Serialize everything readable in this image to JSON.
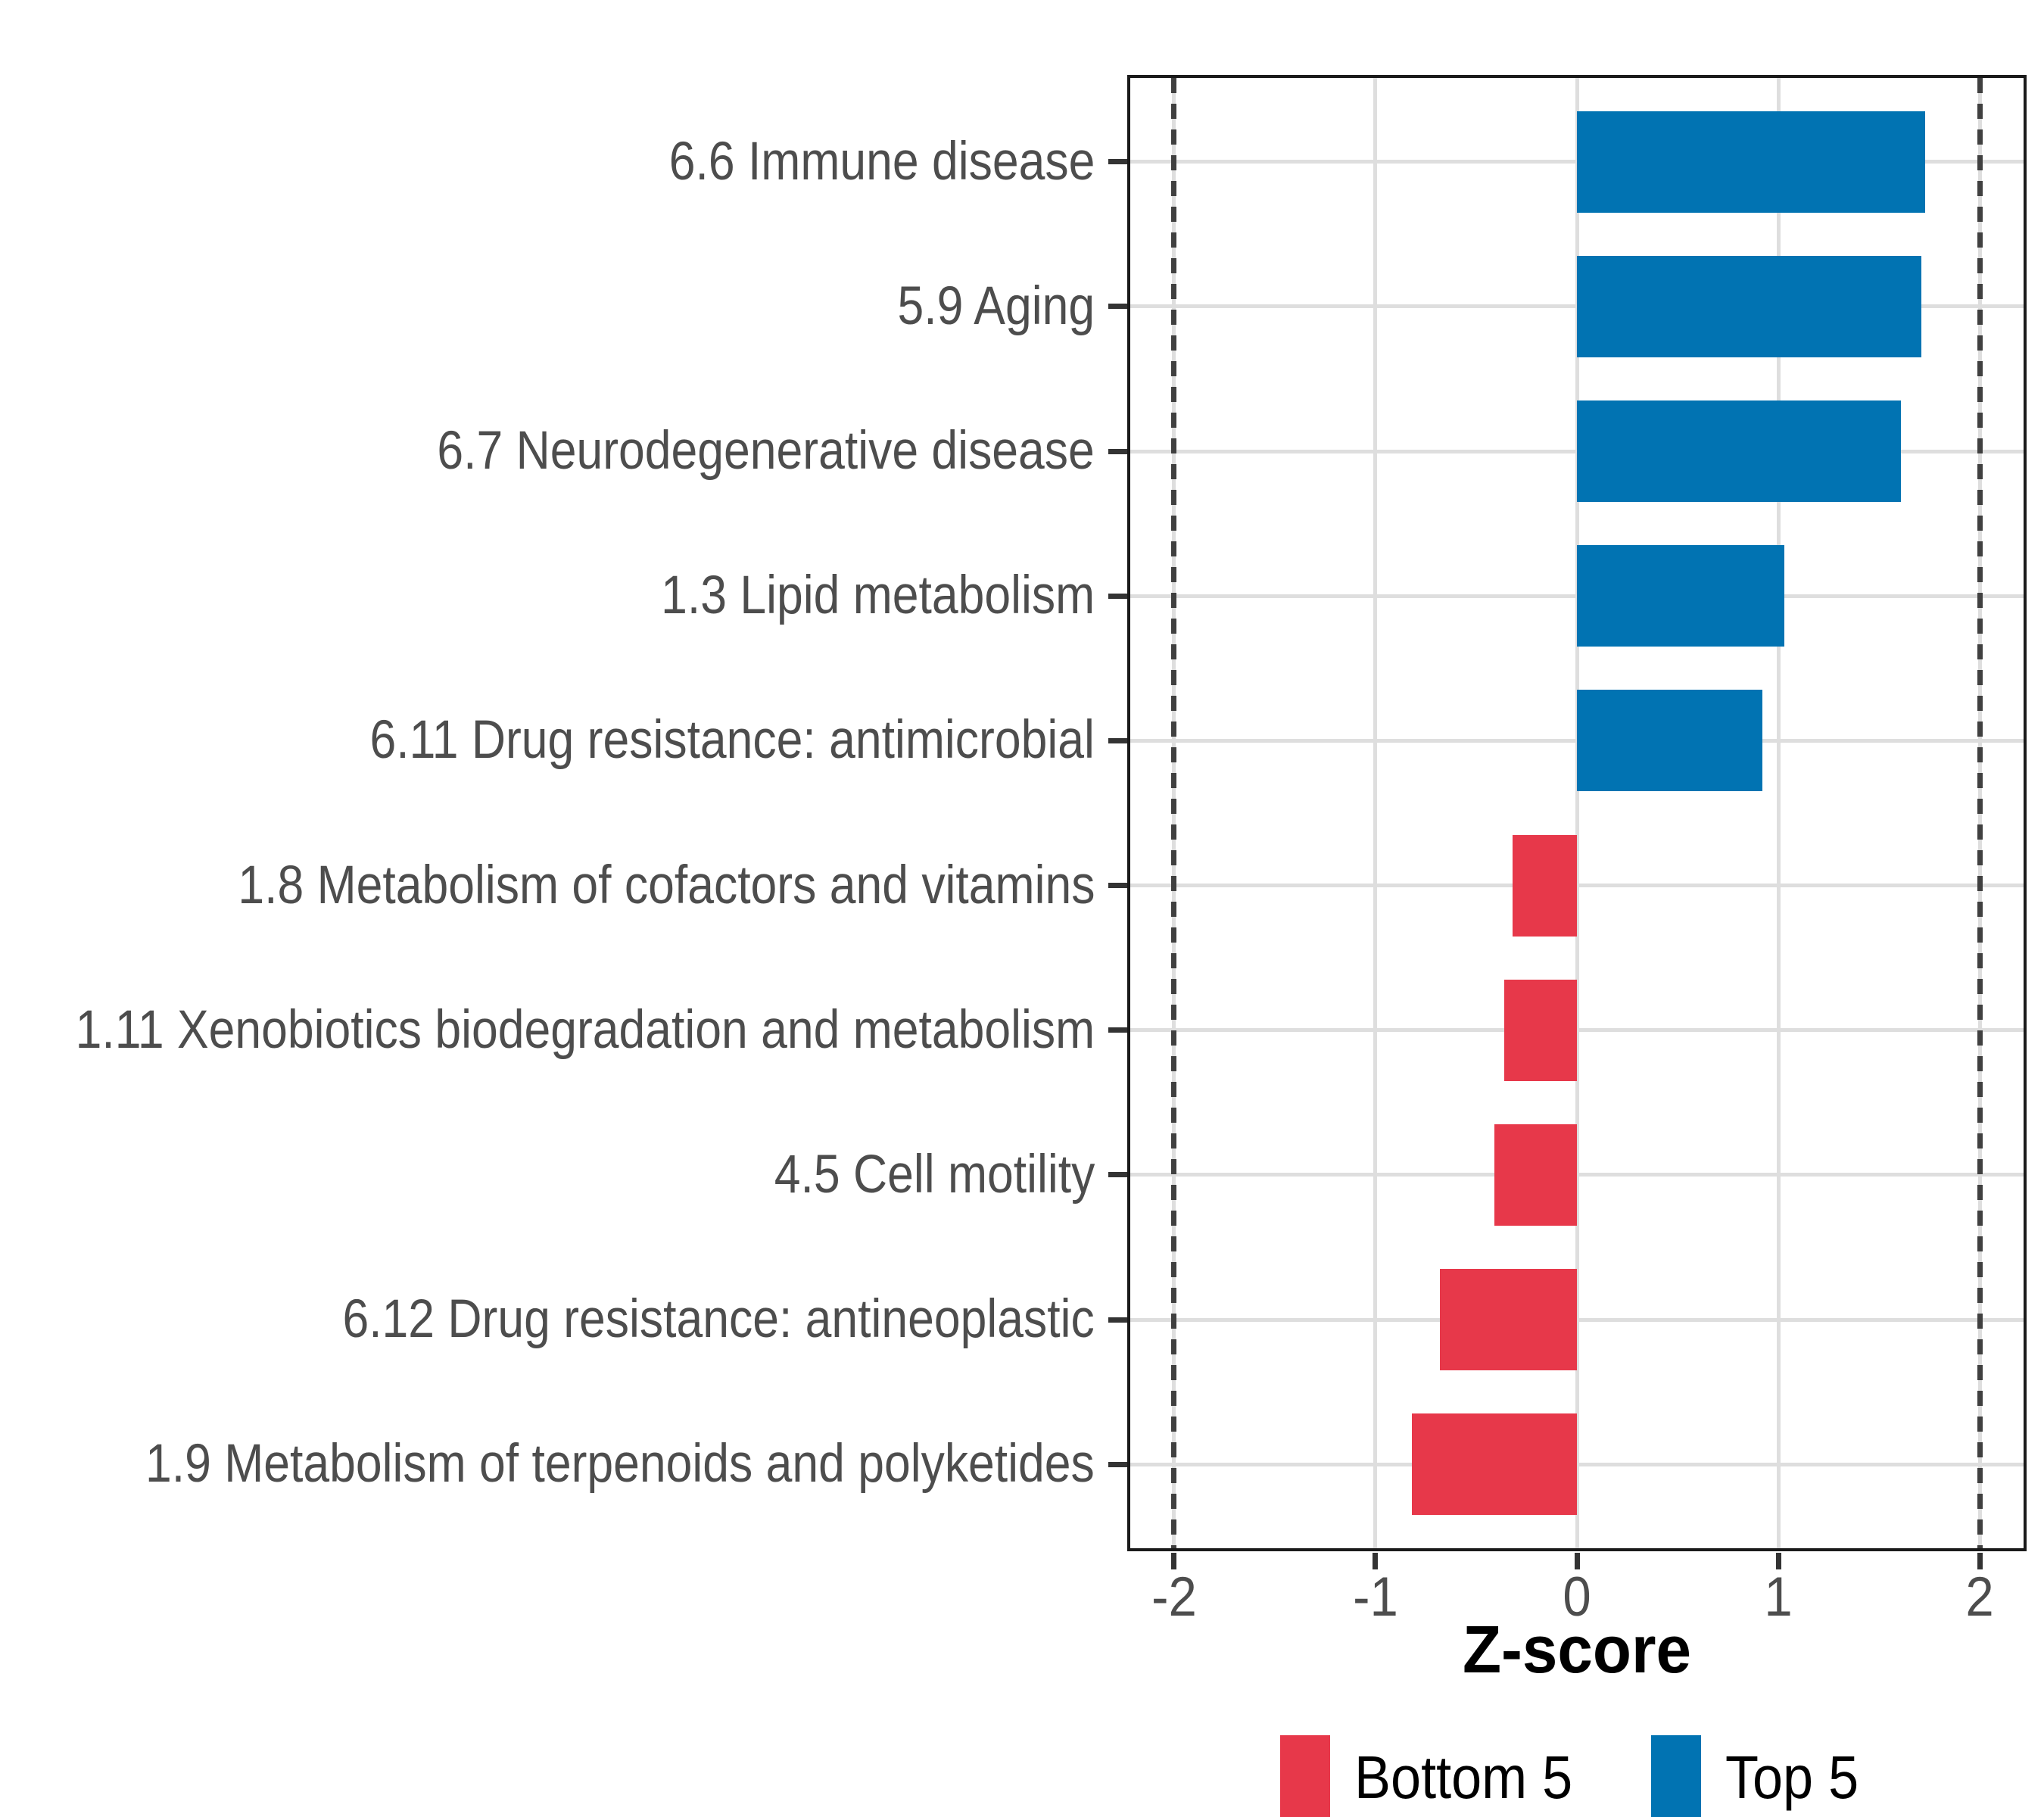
{
  "figure": {
    "background": "#FFFFFF",
    "x_axis_title": "Z-score"
  },
  "chart_data": {
    "type": "bar",
    "orientation": "horizontal",
    "title": "",
    "xlabel": "Z-score",
    "ylabel": "",
    "categories": [
      "6.6 Immune disease",
      "5.9 Aging",
      "6.7 Neurodegenerative disease",
      "1.3 Lipid metabolism",
      "6.11 Drug resistance: antimicrobial",
      "1.8 Metabolism of cofactors and vitamins",
      "1.11 Xenobiotics biodegradation and metabolism",
      "4.5 Cell motility",
      "6.12 Drug resistance: antineoplastic",
      "1.9 Metabolism of terpenoids and polyketides"
    ],
    "series": [
      {
        "name": "Z-score",
        "values": [
          1.73,
          1.71,
          1.61,
          1.03,
          0.92,
          -0.32,
          -0.36,
          -0.41,
          -0.68,
          -0.82
        ],
        "groups": [
          "Top 5",
          "Top 5",
          "Top 5",
          "Top 5",
          "Top 5",
          "Bottom 5",
          "Bottom 5",
          "Bottom 5",
          "Bottom 5",
          "Bottom 5"
        ]
      }
    ],
    "x_tick_labels": [
      "-2",
      "-1",
      "0",
      "1",
      "2"
    ],
    "x_tick_values": [
      -2,
      -1,
      0,
      1,
      2
    ],
    "xlim": [
      -2.233,
      2.233
    ],
    "reference_lines_x": [
      -2,
      2
    ],
    "grid": true,
    "legend_position": "bottom"
  },
  "legend": {
    "items": [
      {
        "label": "Bottom 5",
        "color": "#E7384A"
      },
      {
        "label": "Top 5",
        "color": "#0173B2"
      }
    ]
  },
  "colors": {
    "top5_bar": "#0173B2",
    "bottom5_bar": "#E7384A",
    "grid_line": "#DEDEDE",
    "dashed_reference_line": "#404040",
    "panel_border": "#1A1A1A",
    "axis_text": "#4D4D4D",
    "tick_mark": "#333333",
    "axis_title_text": "#000000",
    "background": "#FFFFFF"
  }
}
